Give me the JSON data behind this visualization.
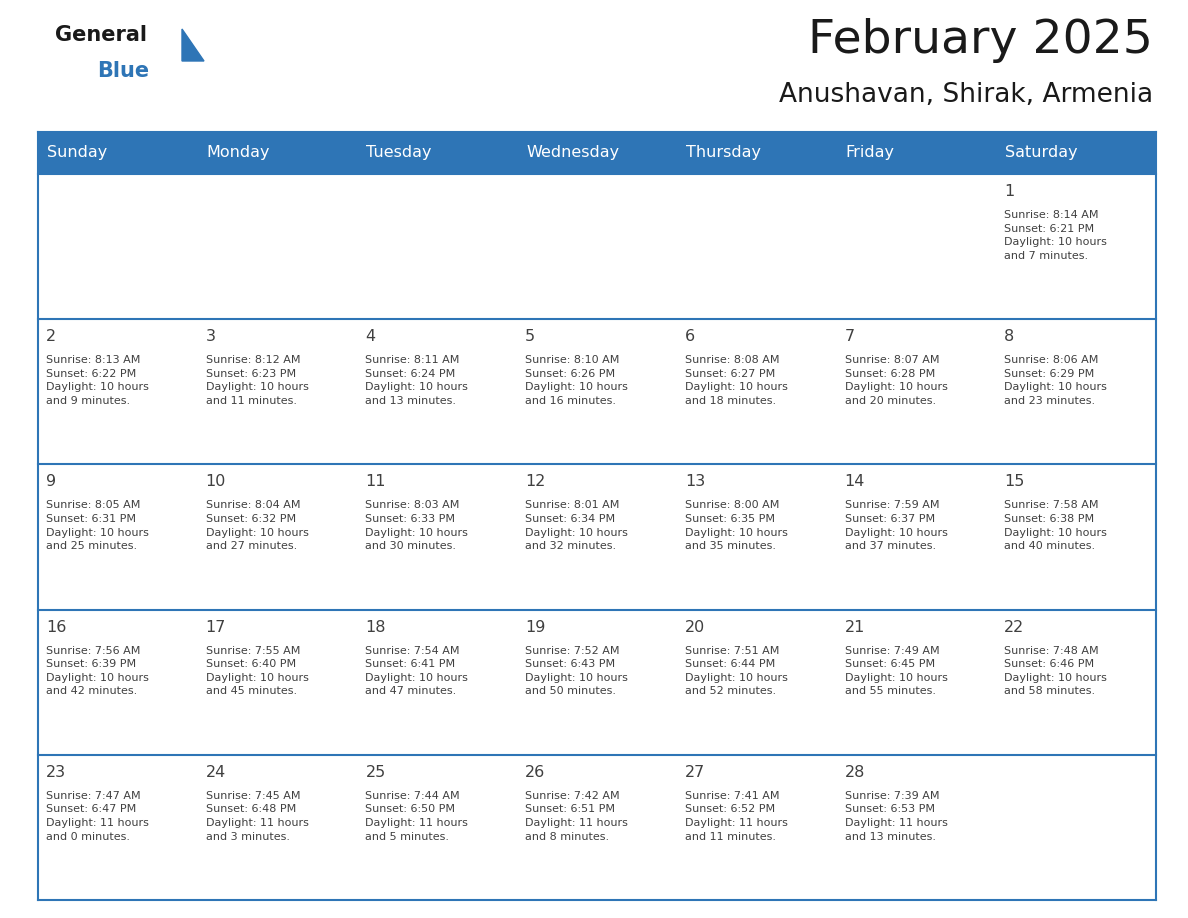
{
  "title": "February 2025",
  "subtitle": "Anushavan, Shirak, Armenia",
  "header_bg": "#2E75B6",
  "header_text": "#FFFFFF",
  "cell_bg": "#FFFFFF",
  "border_color": "#2E75B6",
  "text_color": "#404040",
  "day_number_color": "#2E75B6",
  "day_headers": [
    "Sunday",
    "Monday",
    "Tuesday",
    "Wednesday",
    "Thursday",
    "Friday",
    "Saturday"
  ],
  "calendar_data": [
    [
      {
        "day": "",
        "info": ""
      },
      {
        "day": "",
        "info": ""
      },
      {
        "day": "",
        "info": ""
      },
      {
        "day": "",
        "info": ""
      },
      {
        "day": "",
        "info": ""
      },
      {
        "day": "",
        "info": ""
      },
      {
        "day": "1",
        "info": "Sunrise: 8:14 AM\nSunset: 6:21 PM\nDaylight: 10 hours\nand 7 minutes."
      }
    ],
    [
      {
        "day": "2",
        "info": "Sunrise: 8:13 AM\nSunset: 6:22 PM\nDaylight: 10 hours\nand 9 minutes."
      },
      {
        "day": "3",
        "info": "Sunrise: 8:12 AM\nSunset: 6:23 PM\nDaylight: 10 hours\nand 11 minutes."
      },
      {
        "day": "4",
        "info": "Sunrise: 8:11 AM\nSunset: 6:24 PM\nDaylight: 10 hours\nand 13 minutes."
      },
      {
        "day": "5",
        "info": "Sunrise: 8:10 AM\nSunset: 6:26 PM\nDaylight: 10 hours\nand 16 minutes."
      },
      {
        "day": "6",
        "info": "Sunrise: 8:08 AM\nSunset: 6:27 PM\nDaylight: 10 hours\nand 18 minutes."
      },
      {
        "day": "7",
        "info": "Sunrise: 8:07 AM\nSunset: 6:28 PM\nDaylight: 10 hours\nand 20 minutes."
      },
      {
        "day": "8",
        "info": "Sunrise: 8:06 AM\nSunset: 6:29 PM\nDaylight: 10 hours\nand 23 minutes."
      }
    ],
    [
      {
        "day": "9",
        "info": "Sunrise: 8:05 AM\nSunset: 6:31 PM\nDaylight: 10 hours\nand 25 minutes."
      },
      {
        "day": "10",
        "info": "Sunrise: 8:04 AM\nSunset: 6:32 PM\nDaylight: 10 hours\nand 27 minutes."
      },
      {
        "day": "11",
        "info": "Sunrise: 8:03 AM\nSunset: 6:33 PM\nDaylight: 10 hours\nand 30 minutes."
      },
      {
        "day": "12",
        "info": "Sunrise: 8:01 AM\nSunset: 6:34 PM\nDaylight: 10 hours\nand 32 minutes."
      },
      {
        "day": "13",
        "info": "Sunrise: 8:00 AM\nSunset: 6:35 PM\nDaylight: 10 hours\nand 35 minutes."
      },
      {
        "day": "14",
        "info": "Sunrise: 7:59 AM\nSunset: 6:37 PM\nDaylight: 10 hours\nand 37 minutes."
      },
      {
        "day": "15",
        "info": "Sunrise: 7:58 AM\nSunset: 6:38 PM\nDaylight: 10 hours\nand 40 minutes."
      }
    ],
    [
      {
        "day": "16",
        "info": "Sunrise: 7:56 AM\nSunset: 6:39 PM\nDaylight: 10 hours\nand 42 minutes."
      },
      {
        "day": "17",
        "info": "Sunrise: 7:55 AM\nSunset: 6:40 PM\nDaylight: 10 hours\nand 45 minutes."
      },
      {
        "day": "18",
        "info": "Sunrise: 7:54 AM\nSunset: 6:41 PM\nDaylight: 10 hours\nand 47 minutes."
      },
      {
        "day": "19",
        "info": "Sunrise: 7:52 AM\nSunset: 6:43 PM\nDaylight: 10 hours\nand 50 minutes."
      },
      {
        "day": "20",
        "info": "Sunrise: 7:51 AM\nSunset: 6:44 PM\nDaylight: 10 hours\nand 52 minutes."
      },
      {
        "day": "21",
        "info": "Sunrise: 7:49 AM\nSunset: 6:45 PM\nDaylight: 10 hours\nand 55 minutes."
      },
      {
        "day": "22",
        "info": "Sunrise: 7:48 AM\nSunset: 6:46 PM\nDaylight: 10 hours\nand 58 minutes."
      }
    ],
    [
      {
        "day": "23",
        "info": "Sunrise: 7:47 AM\nSunset: 6:47 PM\nDaylight: 11 hours\nand 0 minutes."
      },
      {
        "day": "24",
        "info": "Sunrise: 7:45 AM\nSunset: 6:48 PM\nDaylight: 11 hours\nand 3 minutes."
      },
      {
        "day": "25",
        "info": "Sunrise: 7:44 AM\nSunset: 6:50 PM\nDaylight: 11 hours\nand 5 minutes."
      },
      {
        "day": "26",
        "info": "Sunrise: 7:42 AM\nSunset: 6:51 PM\nDaylight: 11 hours\nand 8 minutes."
      },
      {
        "day": "27",
        "info": "Sunrise: 7:41 AM\nSunset: 6:52 PM\nDaylight: 11 hours\nand 11 minutes."
      },
      {
        "day": "28",
        "info": "Sunrise: 7:39 AM\nSunset: 6:53 PM\nDaylight: 11 hours\nand 13 minutes."
      },
      {
        "day": "",
        "info": ""
      }
    ]
  ],
  "fig_width": 11.88,
  "fig_height": 9.18,
  "dpi": 100
}
